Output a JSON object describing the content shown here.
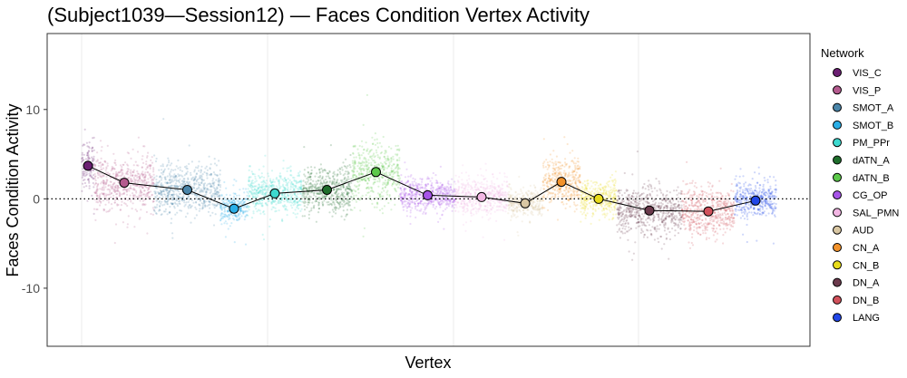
{
  "chart_data": {
    "type": "scatter",
    "title": "(Subject1039—Session12) — Faces Condition Vertex Activity",
    "xlabel": "Vertex",
    "ylabel": "Faces Condition Activity",
    "ylim": [
      -16.5,
      18.5
    ],
    "yticks": [
      -10,
      0,
      10
    ],
    "ytick_labels": [
      "-10",
      "0",
      "10"
    ],
    "reference_line": 0,
    "legend_title": "Network",
    "legend_position": "right",
    "series": [
      {
        "name": "VIS_C",
        "color": "#6B1F72",
        "mean": 3.7,
        "spread": 2.4
      },
      {
        "name": "VIS_P",
        "color": "#B45A8E",
        "mean": 1.8,
        "spread": 2.6
      },
      {
        "name": "SMOT_A",
        "color": "#4A85A9",
        "mean": 1.0,
        "spread": 2.6
      },
      {
        "name": "SMOT_B",
        "color": "#2AAEE6",
        "mean": -1.1,
        "spread": 1.5
      },
      {
        "name": "PM_PPr",
        "color": "#3DD9CF",
        "mean": 0.6,
        "spread": 2.0
      },
      {
        "name": "dATN_A",
        "color": "#1F6E2C",
        "mean": 1.0,
        "spread": 2.3
      },
      {
        "name": "dATN_B",
        "color": "#5CC94A",
        "mean": 3.0,
        "spread": 3.0
      },
      {
        "name": "CG_OP",
        "color": "#A754E8",
        "mean": 0.4,
        "spread": 1.6
      },
      {
        "name": "SAL_PMN",
        "color": "#F2B6E3",
        "mean": 0.2,
        "spread": 1.8
      },
      {
        "name": "AUD",
        "color": "#D9C7A3",
        "mean": -0.5,
        "spread": 1.4
      },
      {
        "name": "CN_A",
        "color": "#F2922B",
        "mean": 1.9,
        "spread": 2.3
      },
      {
        "name": "CN_B",
        "color": "#E8DC1A",
        "mean": 0.0,
        "spread": 1.8
      },
      {
        "name": "DN_A",
        "color": "#6B3A4C",
        "mean": -1.3,
        "spread": 2.3
      },
      {
        "name": "DN_B",
        "color": "#D1515B",
        "mean": -1.4,
        "spread": 2.4
      },
      {
        "name": "LANG",
        "color": "#2247E8",
        "mean": -0.2,
        "spread": 1.8
      }
    ]
  }
}
